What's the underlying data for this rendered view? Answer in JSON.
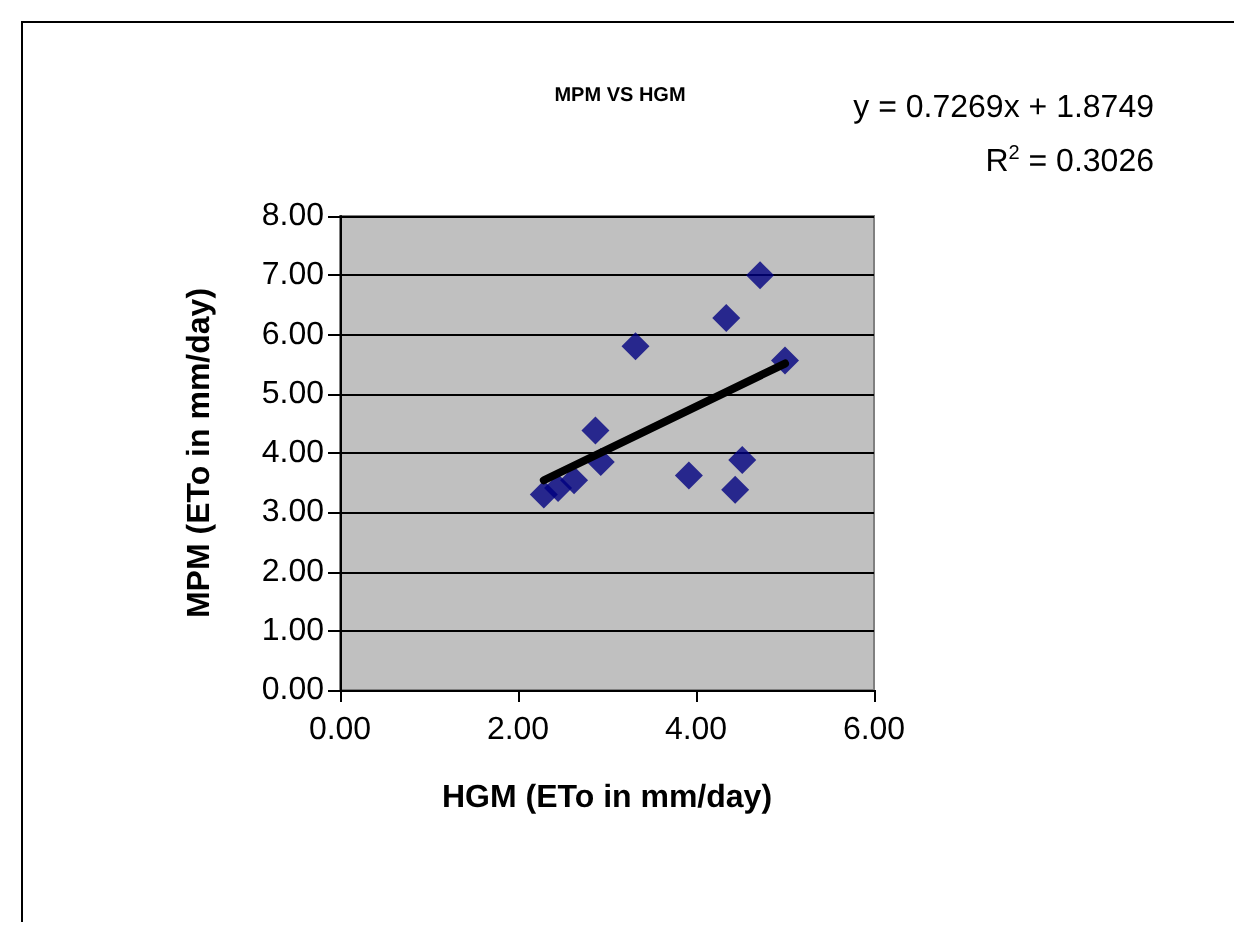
{
  "chart_data": {
    "type": "scatter",
    "title": "MPM VS HGM",
    "xlabel": "HGM (ETo in mm/day)",
    "ylabel": "MPM (ETo in mm/day)",
    "annotations": [
      "y = 0.7269x + 1.8749",
      "R$^{2}$ = 0.3026"
    ],
    "xlim": [
      0,
      6
    ],
    "xticks": [
      {
        "value": 0,
        "label": "0.00"
      },
      {
        "value": 2,
        "label": "2.00"
      },
      {
        "value": 4,
        "label": "4.00"
      },
      {
        "value": 6,
        "label": "6.00"
      }
    ],
    "ylim": [
      0,
      8
    ],
    "yticks": [
      {
        "value": 0,
        "label": "0.00"
      },
      {
        "value": 1,
        "label": "1.00"
      },
      {
        "value": 2,
        "label": "2.00"
      },
      {
        "value": 3,
        "label": "3.00"
      },
      {
        "value": 4,
        "label": "4.00"
      },
      {
        "value": 5,
        "label": "5.00"
      },
      {
        "value": 6,
        "label": "6.00"
      },
      {
        "value": 7,
        "label": "7.00"
      },
      {
        "value": 8,
        "label": "8.00"
      }
    ],
    "grid": "y",
    "marker": "diamond",
    "series": [
      {
        "color": "#000080",
        "x": [
          2.29,
          2.45,
          2.63,
          2.87,
          2.93,
          3.32,
          3.92,
          4.34,
          4.44,
          4.52,
          4.72,
          5.0
        ],
        "values": [
          3.3,
          3.41,
          3.54,
          4.38,
          3.85,
          5.8,
          3.62,
          6.28,
          3.38,
          3.88,
          7.0,
          5.56
        ]
      },
      {
        "type": "line",
        "color": "#000000",
        "marker": "none",
        "line_style": "solid",
        "x": [
          2.29,
          5.0
        ],
        "values": [
          3.54,
          5.51
        ]
      }
    ]
  }
}
